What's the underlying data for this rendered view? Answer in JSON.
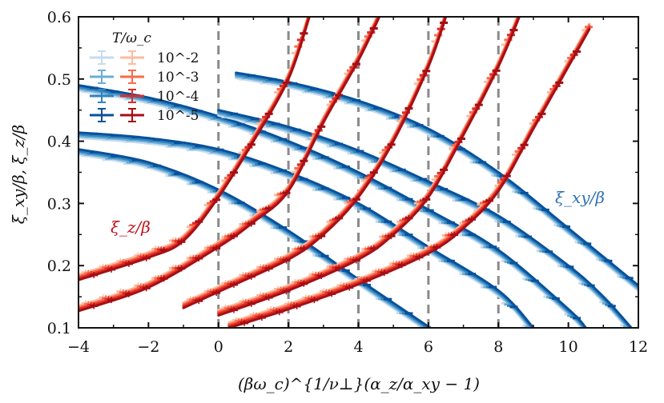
{
  "chart_data": {
    "type": "line",
    "xlabel": "(βω_c)^{1/ν⊥}(α_z/α_xy − 1)",
    "ylabel": "ξ_xy/β,  ξ_z/β",
    "xlim": [
      -4,
      12
    ],
    "ylim": [
      0.1,
      0.6
    ],
    "x_ticks": [
      "−4",
      "−2",
      "0",
      "2",
      "4",
      "6",
      "8",
      "10",
      "12"
    ],
    "y_ticks": [
      "0.1",
      "0.2",
      "0.3",
      "0.4",
      "0.5",
      "0.6"
    ],
    "vlines": [
      0,
      2,
      4,
      6,
      8
    ],
    "legend": {
      "title": "T/ω_c",
      "labels": [
        "10^-2",
        "10^-3",
        "10^-4",
        "10^-5"
      ],
      "blue_colors": [
        "#c6dbef",
        "#6baed6",
        "#3182bd",
        "#08519c"
      ],
      "red_colors": [
        "#fcbba1",
        "#fb6a4a",
        "#de2d26",
        "#a50f15"
      ]
    },
    "annotations": {
      "xi_xy": "ξ_xy/β",
      "xi_z": "ξ_z/β",
      "xi_xy_color": "#2f73b5",
      "xi_z_color": "#c0141b"
    },
    "xi_xy_series": [
      {
        "offset": 0,
        "points": [
          [
            -4,
            0.387
          ],
          [
            -2,
            0.366
          ],
          [
            0,
            0.322
          ],
          [
            2,
            0.256
          ],
          [
            4,
            0.178
          ],
          [
            6,
            0.102
          ]
        ]
      },
      {
        "offset": 2,
        "points": [
          [
            -4,
            0.414
          ],
          [
            -2,
            0.405
          ],
          [
            0,
            0.387
          ],
          [
            2,
            0.35
          ],
          [
            4,
            0.3
          ],
          [
            6,
            0.23
          ],
          [
            8,
            0.16
          ],
          [
            9,
            0.1
          ]
        ]
      },
      {
        "offset": 4,
        "points": [
          [
            -4,
            0.49
          ],
          [
            -2,
            0.47
          ],
          [
            0,
            0.44
          ],
          [
            2,
            0.4
          ],
          [
            4,
            0.35
          ],
          [
            6,
            0.29
          ],
          [
            8,
            0.225
          ],
          [
            10,
            0.13
          ],
          [
            10.5,
            0.1
          ]
        ]
      },
      {
        "offset": 6,
        "points": [
          [
            0,
            0.45
          ],
          [
            2,
            0.423
          ],
          [
            4,
            0.385
          ],
          [
            6,
            0.335
          ],
          [
            8,
            0.28
          ],
          [
            10,
            0.2
          ],
          [
            11,
            0.15
          ],
          [
            11.8,
            0.1
          ]
        ]
      },
      {
        "offset": 8,
        "points": [
          [
            0.5,
            0.51
          ],
          [
            2,
            0.495
          ],
          [
            4,
            0.465
          ],
          [
            6,
            0.42
          ],
          [
            8,
            0.35
          ],
          [
            10,
            0.26
          ],
          [
            12,
            0.168
          ]
        ]
      }
    ],
    "xi_z_series": [
      {
        "offset": 0,
        "points": [
          [
            -4,
            0.177
          ],
          [
            -2,
            0.213
          ],
          [
            -1,
            0.24
          ],
          [
            0,
            0.31
          ],
          [
            1,
            0.4
          ],
          [
            2,
            0.5
          ],
          [
            2.6,
            0.6
          ]
        ]
      },
      {
        "offset": 2,
        "points": [
          [
            -4,
            0.127
          ],
          [
            -2,
            0.165
          ],
          [
            0,
            0.23
          ],
          [
            1,
            0.27
          ],
          [
            2,
            0.32
          ],
          [
            3,
            0.43
          ],
          [
            4,
            0.53
          ],
          [
            4.6,
            0.6
          ]
        ]
      },
      {
        "offset": 4,
        "points": [
          [
            -1,
            0.132
          ],
          [
            0,
            0.158
          ],
          [
            2,
            0.21
          ],
          [
            3,
            0.25
          ],
          [
            4,
            0.31
          ],
          [
            5,
            0.4
          ],
          [
            6,
            0.52
          ],
          [
            6.5,
            0.6
          ]
        ]
      },
      {
        "offset": 6,
        "points": [
          [
            0,
            0.12
          ],
          [
            2,
            0.16
          ],
          [
            4,
            0.21
          ],
          [
            5,
            0.25
          ],
          [
            6,
            0.31
          ],
          [
            7,
            0.41
          ],
          [
            8,
            0.52
          ],
          [
            8.6,
            0.6
          ]
        ]
      },
      {
        "offset": 8,
        "points": [
          [
            0.3,
            0.1
          ],
          [
            2,
            0.13
          ],
          [
            4,
            0.17
          ],
          [
            6,
            0.22
          ],
          [
            7,
            0.26
          ],
          [
            8,
            0.32
          ],
          [
            9,
            0.42
          ],
          [
            10,
            0.52
          ],
          [
            10.6,
            0.58
          ]
        ]
      }
    ]
  }
}
